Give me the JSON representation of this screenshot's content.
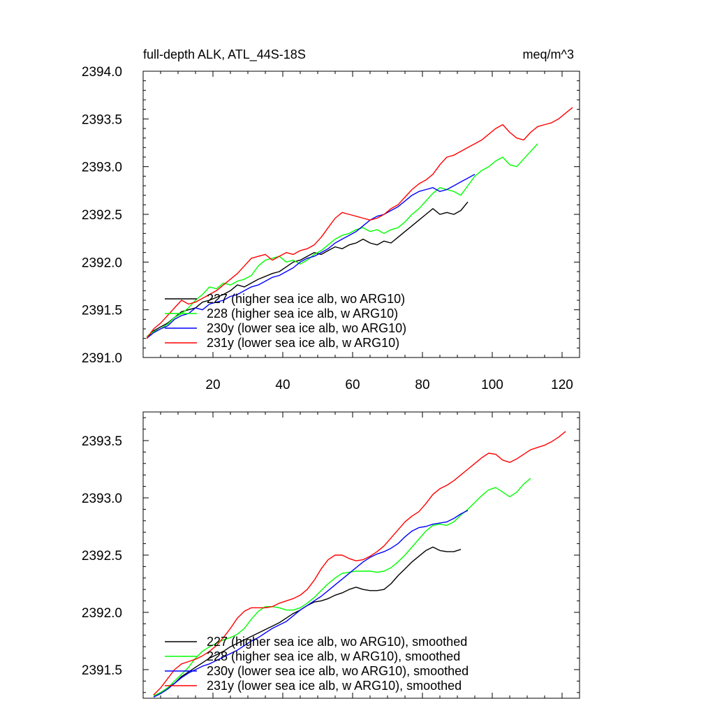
{
  "chart_data": [
    {
      "type": "line",
      "title": "full-depth ALK, ATL_44S-18S",
      "units_label": "meq/m^3",
      "xlim": [
        0,
        125
      ],
      "ylim": [
        2391.0,
        2394.0
      ],
      "x_ticks": [
        20,
        40,
        60,
        80,
        100,
        120
      ],
      "x_tick_labels": [
        "20",
        "40",
        "60",
        "80",
        "100",
        "120"
      ],
      "y_ticks": [
        2391.0,
        2391.5,
        2392.0,
        2392.5,
        2393.0,
        2393.5,
        2394.0
      ],
      "y_tick_labels": [
        "2391.0",
        "2391.5",
        "2392.0",
        "2392.5",
        "2393.0",
        "2393.5",
        "2394.0"
      ],
      "legend_position": "lower-left",
      "series": [
        {
          "name": "227 (higher sea ice alb, wo ARG10)",
          "color": "#000000",
          "x": [
            1,
            3,
            5,
            7,
            9,
            11,
            13,
            15,
            17,
            19,
            21,
            23,
            25,
            27,
            29,
            31,
            33,
            35,
            37,
            39,
            41,
            43,
            45,
            47,
            49,
            51,
            53,
            55,
            57,
            59,
            61,
            63,
            65,
            67,
            69,
            71,
            73,
            75,
            77,
            79,
            81,
            83,
            85,
            87,
            89,
            91,
            93
          ],
          "y": [
            2391.2,
            2391.28,
            2391.32,
            2391.36,
            2391.42,
            2391.48,
            2391.5,
            2391.52,
            2391.58,
            2391.6,
            2391.63,
            2391.66,
            2391.7,
            2391.76,
            2391.74,
            2391.78,
            2391.82,
            2391.85,
            2391.88,
            2391.9,
            2391.95,
            2392.0,
            2392.02,
            2392.06,
            2392.1,
            2392.08,
            2392.12,
            2392.16,
            2392.14,
            2392.18,
            2392.2,
            2392.24,
            2392.2,
            2392.18,
            2392.22,
            2392.2,
            2392.26,
            2392.32,
            2392.38,
            2392.44,
            2392.5,
            2392.56,
            2392.5,
            2392.52,
            2392.5,
            2392.54,
            2392.63
          ]
        },
        {
          "name": "228 (higher sea ice alb, w ARG10)",
          "color": "#00ff00",
          "x": [
            1,
            3,
            5,
            7,
            9,
            11,
            13,
            15,
            17,
            19,
            21,
            23,
            25,
            27,
            29,
            31,
            33,
            35,
            37,
            39,
            41,
            43,
            45,
            47,
            49,
            51,
            53,
            55,
            57,
            59,
            61,
            63,
            65,
            67,
            69,
            71,
            73,
            75,
            77,
            79,
            81,
            83,
            85,
            87,
            89,
            91,
            93,
            95,
            97,
            99,
            101,
            103,
            105,
            107,
            109,
            111,
            113
          ],
          "y": [
            2391.22,
            2391.27,
            2391.3,
            2391.35,
            2391.42,
            2391.46,
            2391.52,
            2391.6,
            2391.66,
            2391.74,
            2391.72,
            2391.78,
            2391.76,
            2391.8,
            2391.82,
            2391.86,
            2391.96,
            2392.02,
            2392.04,
            2392.06,
            2392.0,
            2392.02,
            2391.98,
            2392.02,
            2392.08,
            2392.12,
            2392.18,
            2392.24,
            2392.28,
            2392.3,
            2392.34,
            2392.36,
            2392.32,
            2392.34,
            2392.3,
            2392.34,
            2392.36,
            2392.42,
            2392.5,
            2392.56,
            2392.64,
            2392.72,
            2392.78,
            2392.76,
            2392.74,
            2392.7,
            2392.8,
            2392.9,
            2392.96,
            2393.0,
            2393.06,
            2393.1,
            2393.02,
            2393.0,
            2393.08,
            2393.16,
            2393.24
          ]
        },
        {
          "name": "230y (lower sea ice alb, wo ARG10)",
          "color": "#0000ff",
          "x": [
            1,
            3,
            5,
            7,
            9,
            11,
            13,
            15,
            17,
            19,
            21,
            23,
            25,
            27,
            29,
            31,
            33,
            35,
            37,
            39,
            41,
            43,
            45,
            47,
            49,
            51,
            53,
            55,
            57,
            59,
            61,
            63,
            65,
            67,
            69,
            71,
            73,
            75,
            77,
            79,
            81,
            83,
            85,
            87,
            89,
            91,
            93,
            95
          ],
          "y": [
            2391.2,
            2391.26,
            2391.3,
            2391.33,
            2391.4,
            2391.44,
            2391.46,
            2391.52,
            2391.5,
            2391.56,
            2391.58,
            2391.6,
            2391.64,
            2391.66,
            2391.7,
            2391.74,
            2391.76,
            2391.8,
            2391.84,
            2391.86,
            2391.9,
            2391.94,
            2392.0,
            2392.04,
            2392.06,
            2392.1,
            2392.14,
            2392.2,
            2392.24,
            2392.28,
            2392.32,
            2392.38,
            2392.44,
            2392.48,
            2392.5,
            2392.54,
            2392.58,
            2392.64,
            2392.7,
            2392.74,
            2392.76,
            2392.78,
            2392.74,
            2392.76,
            2392.8,
            2392.84,
            2392.88,
            2392.92
          ]
        },
        {
          "name": "231y (lower sea ice alb, w ARG10)",
          "color": "#ff0000",
          "x": [
            1,
            3,
            5,
            7,
            9,
            11,
            13,
            15,
            17,
            19,
            21,
            23,
            25,
            27,
            29,
            31,
            33,
            35,
            37,
            39,
            41,
            43,
            45,
            47,
            49,
            51,
            53,
            55,
            57,
            59,
            61,
            63,
            65,
            67,
            69,
            71,
            73,
            75,
            77,
            79,
            81,
            83,
            85,
            87,
            89,
            91,
            93,
            95,
            97,
            99,
            101,
            103,
            105,
            107,
            109,
            111,
            113,
            115,
            117,
            119,
            121,
            123
          ],
          "y": [
            2391.2,
            2391.3,
            2391.36,
            2391.44,
            2391.52,
            2391.6,
            2391.56,
            2391.58,
            2391.62,
            2391.66,
            2391.7,
            2391.76,
            2391.82,
            2391.88,
            2391.96,
            2392.04,
            2392.06,
            2392.08,
            2392.02,
            2392.06,
            2392.1,
            2392.08,
            2392.12,
            2392.14,
            2392.18,
            2392.26,
            2392.36,
            2392.46,
            2392.52,
            2392.5,
            2392.48,
            2392.46,
            2392.44,
            2392.46,
            2392.5,
            2392.56,
            2392.6,
            2392.68,
            2392.76,
            2392.82,
            2392.86,
            2392.92,
            2393.02,
            2393.1,
            2393.12,
            2393.16,
            2393.2,
            2393.24,
            2393.28,
            2393.34,
            2393.4,
            2393.44,
            2393.36,
            2393.3,
            2393.28,
            2393.36,
            2393.42,
            2393.44,
            2393.46,
            2393.5,
            2393.56,
            2393.62
          ]
        }
      ]
    },
    {
      "type": "line",
      "title": "",
      "xlim": [
        0,
        125
      ],
      "ylim": [
        2391.25,
        2393.75
      ],
      "x_ticks": [
        20,
        40,
        60,
        80,
        100,
        120
      ],
      "x_tick_labels": [],
      "y_ticks": [
        2391.5,
        2392.0,
        2392.5,
        2393.0,
        2393.5
      ],
      "y_tick_labels": [
        "2391.5",
        "2392.0",
        "2392.5",
        "2393.0",
        "2393.5"
      ],
      "legend_position": "lower-left",
      "series": [
        {
          "name": "227 (higher sea ice alb, wo ARG10), smoothed",
          "color": "#000000",
          "x": [
            3,
            5,
            7,
            9,
            11,
            13,
            15,
            17,
            19,
            21,
            23,
            25,
            27,
            29,
            31,
            33,
            35,
            37,
            39,
            41,
            43,
            45,
            47,
            49,
            51,
            53,
            55,
            57,
            59,
            61,
            63,
            65,
            67,
            69,
            71,
            73,
            75,
            77,
            79,
            81,
            83,
            85,
            87,
            89,
            91
          ],
          "y": [
            2391.27,
            2391.3,
            2391.34,
            2391.38,
            2391.44,
            2391.48,
            2391.52,
            2391.56,
            2391.6,
            2391.63,
            2391.66,
            2391.7,
            2391.73,
            2391.76,
            2391.79,
            2391.82,
            2391.85,
            2391.88,
            2391.91,
            2391.95,
            2391.99,
            2392.02,
            2392.06,
            2392.09,
            2392.1,
            2392.12,
            2392.15,
            2392.17,
            2392.2,
            2392.22,
            2392.2,
            2392.19,
            2392.19,
            2392.2,
            2392.25,
            2392.32,
            2392.38,
            2392.44,
            2392.49,
            2392.54,
            2392.57,
            2392.54,
            2392.53,
            2392.53,
            2392.55
          ]
        },
        {
          "name": "228 (higher sea ice alb, w ARG10), smoothed",
          "color": "#00ff00",
          "x": [
            3,
            5,
            7,
            9,
            11,
            13,
            15,
            17,
            19,
            21,
            23,
            25,
            27,
            29,
            31,
            33,
            35,
            37,
            39,
            41,
            43,
            45,
            47,
            49,
            51,
            53,
            55,
            57,
            59,
            61,
            63,
            65,
            67,
            69,
            71,
            73,
            75,
            77,
            79,
            81,
            83,
            85,
            87,
            89,
            91,
            93,
            95,
            97,
            99,
            101,
            103,
            105,
            107,
            109,
            111
          ],
          "y": [
            2391.27,
            2391.3,
            2391.34,
            2391.4,
            2391.46,
            2391.52,
            2391.6,
            2391.66,
            2391.7,
            2391.73,
            2391.76,
            2391.78,
            2391.81,
            2391.86,
            2391.94,
            2392.01,
            2392.05,
            2392.05,
            2392.04,
            2392.02,
            2392.02,
            2392.04,
            2392.08,
            2392.13,
            2392.19,
            2392.25,
            2392.3,
            2392.34,
            2392.35,
            2392.36,
            2392.36,
            2392.36,
            2392.35,
            2392.36,
            2392.39,
            2392.44,
            2392.5,
            2392.57,
            2392.64,
            2392.71,
            2392.76,
            2392.77,
            2392.76,
            2392.79,
            2392.85,
            2392.9,
            2392.96,
            2393.02,
            2393.07,
            2393.09,
            2393.05,
            2393.01,
            2393.05,
            2393.12,
            2393.17
          ]
        },
        {
          "name": "230y (lower sea ice alb, wo ARG10), smoothed",
          "color": "#0000ff",
          "x": [
            3,
            5,
            7,
            9,
            11,
            13,
            15,
            17,
            19,
            21,
            23,
            25,
            27,
            29,
            31,
            33,
            35,
            37,
            39,
            41,
            43,
            45,
            47,
            49,
            51,
            53,
            55,
            57,
            59,
            61,
            63,
            65,
            67,
            69,
            71,
            73,
            75,
            77,
            79,
            81,
            83,
            85,
            87,
            89,
            91,
            93
          ],
          "y": [
            2391.26,
            2391.29,
            2391.33,
            2391.38,
            2391.43,
            2391.47,
            2391.5,
            2391.53,
            2391.55,
            2391.58,
            2391.61,
            2391.64,
            2391.67,
            2391.71,
            2391.75,
            2391.78,
            2391.82,
            2391.86,
            2391.89,
            2391.92,
            2391.97,
            2392.02,
            2392.06,
            2392.1,
            2392.14,
            2392.19,
            2392.24,
            2392.29,
            2392.34,
            2392.39,
            2392.44,
            2392.48,
            2392.51,
            2392.53,
            2392.56,
            2392.6,
            2392.66,
            2392.71,
            2392.74,
            2392.75,
            2392.77,
            2392.78,
            2392.79,
            2392.82,
            2392.86,
            2392.89
          ]
        },
        {
          "name": "231y (lower sea ice alb, w ARG10), smoothed",
          "color": "#ff0000",
          "x": [
            3,
            5,
            7,
            9,
            11,
            13,
            15,
            17,
            19,
            21,
            23,
            25,
            27,
            29,
            31,
            33,
            35,
            37,
            39,
            41,
            43,
            45,
            47,
            49,
            51,
            53,
            55,
            57,
            59,
            61,
            63,
            65,
            67,
            69,
            71,
            73,
            75,
            77,
            79,
            81,
            83,
            85,
            87,
            89,
            91,
            93,
            95,
            97,
            99,
            101,
            103,
            105,
            107,
            109,
            111,
            113,
            115,
            117,
            119,
            121
          ],
          "y": [
            2391.28,
            2391.34,
            2391.42,
            2391.5,
            2391.55,
            2391.57,
            2391.59,
            2391.62,
            2391.66,
            2391.71,
            2391.78,
            2391.86,
            2391.95,
            2392.01,
            2392.04,
            2392.04,
            2392.04,
            2392.05,
            2392.08,
            2392.1,
            2392.12,
            2392.15,
            2392.2,
            2392.28,
            2392.38,
            2392.46,
            2392.5,
            2392.5,
            2392.47,
            2392.45,
            2392.46,
            2392.49,
            2392.53,
            2392.58,
            2392.65,
            2392.72,
            2392.79,
            2392.84,
            2392.88,
            2392.95,
            2393.03,
            2393.08,
            2393.11,
            2393.15,
            2393.2,
            2393.25,
            2393.3,
            2393.35,
            2393.39,
            2393.38,
            2393.33,
            2393.31,
            2393.34,
            2393.38,
            2393.42,
            2393.44,
            2393.46,
            2393.49,
            2393.53,
            2393.58
          ]
        }
      ]
    }
  ]
}
